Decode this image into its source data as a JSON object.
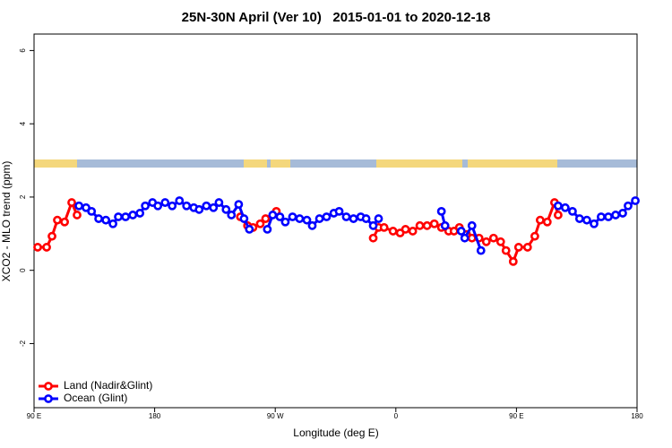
{
  "chart_data": {
    "type": "line",
    "title": "25N-30N April (Ver 10)   2015-01-01 to 2020-12-18",
    "xlabel": "Longitude (deg E)",
    "ylabel": "XCO2 - MLO trend (ppm)",
    "xlim": [
      90,
      540
    ],
    "ylim": [
      -3.75,
      6.45
    ],
    "xticks": [
      {
        "value": 90,
        "label": "90 E"
      },
      180,
      {
        "value": 270,
        "label": "90 W"
      },
      {
        "value": 360,
        "label": "0"
      },
      {
        "value": 450,
        "label": "90 E"
      },
      {
        "value": 540,
        "label": "180"
      }
    ],
    "yticks": [
      -2,
      0,
      2,
      4,
      6
    ],
    "legend": "bottomleft",
    "series": [
      {
        "name": "Land (Nadir&Glint)",
        "color": "#ff0000",
        "x": [
          92.7,
          99.4,
          103.4,
          107.4,
          112.8,
          118.1,
          122.1,
          null,
          244.0,
          249.3,
          253.4,
          258.8,
          262.8,
          270.8,
          null,
          343.1,
          347.1,
          351.2,
          357.9,
          363.2,
          367.2,
          372.6,
          377.9,
          383.3,
          388.7,
          394.0,
          399.4,
          403.4,
          407.4,
          412.8,
          416.8,
          422.1,
          427.5,
          432.9,
          438.2,
          442.2,
          447.6,
          451.6,
          458.3,
          463.7,
          467.7,
          473.0,
          478.4,
          481.1
        ],
        "values": [
          0.63,
          0.63,
          0.93,
          1.37,
          1.32,
          1.85,
          1.51,
          null,
          1.46,
          1.22,
          1.17,
          1.27,
          1.41,
          1.61,
          null,
          0.88,
          1.17,
          1.17,
          1.07,
          1.02,
          1.12,
          1.07,
          1.22,
          1.22,
          1.27,
          1.17,
          1.07,
          1.07,
          1.17,
          0.98,
          0.88,
          0.88,
          0.78,
          0.88,
          0.78,
          0.54,
          0.24,
          0.63,
          0.63,
          0.93,
          1.37,
          1.32,
          1.85,
          1.51
        ]
      },
      {
        "name": "Ocean (Glint)",
        "color": "#0000ff",
        "x": [
          123.5,
          128.8,
          132.9,
          138.2,
          143.6,
          148.9,
          152.9,
          158.3,
          163.7,
          169.0,
          173.0,
          178.4,
          182.4,
          187.8,
          193.1,
          198.5,
          203.8,
          209.2,
          213.2,
          218.6,
          223.9,
          228.0,
          233.3,
          237.3,
          242.7,
          246.7,
          250.7,
          null,
          264.1,
          268.1,
          273.5,
          277.5,
          282.9,
          288.2,
          293.6,
          297.6,
          303.0,
          308.3,
          313.7,
          317.7,
          323.0,
          328.4,
          333.8,
          337.8,
          343.1,
          347.1,
          null,
          394.0,
          396.7,
          null,
          408.8,
          411.4,
          416.8,
          423.5,
          null,
          481.1,
          486.4,
          491.8,
          497.1,
          502.5,
          507.9,
          513.2,
          518.6,
          524.0,
          529.3,
          533.3,
          538.7
        ],
        "values": [
          1.76,
          1.71,
          1.61,
          1.41,
          1.37,
          1.27,
          1.46,
          1.46,
          1.51,
          1.56,
          1.76,
          1.85,
          1.76,
          1.85,
          1.76,
          1.9,
          1.76,
          1.71,
          1.66,
          1.76,
          1.71,
          1.85,
          1.66,
          1.51,
          1.8,
          1.41,
          1.12,
          null,
          1.12,
          1.51,
          1.46,
          1.32,
          1.46,
          1.41,
          1.37,
          1.22,
          1.41,
          1.46,
          1.56,
          1.61,
          1.46,
          1.41,
          1.46,
          1.41,
          1.22,
          1.41,
          null,
          1.61,
          1.22,
          null,
          1.07,
          0.88,
          1.22,
          0.54,
          null,
          1.76,
          1.71,
          1.61,
          1.41,
          1.37,
          1.27,
          1.46,
          1.46,
          1.51,
          1.56,
          1.76,
          1.9
        ]
      }
    ]
  }
}
